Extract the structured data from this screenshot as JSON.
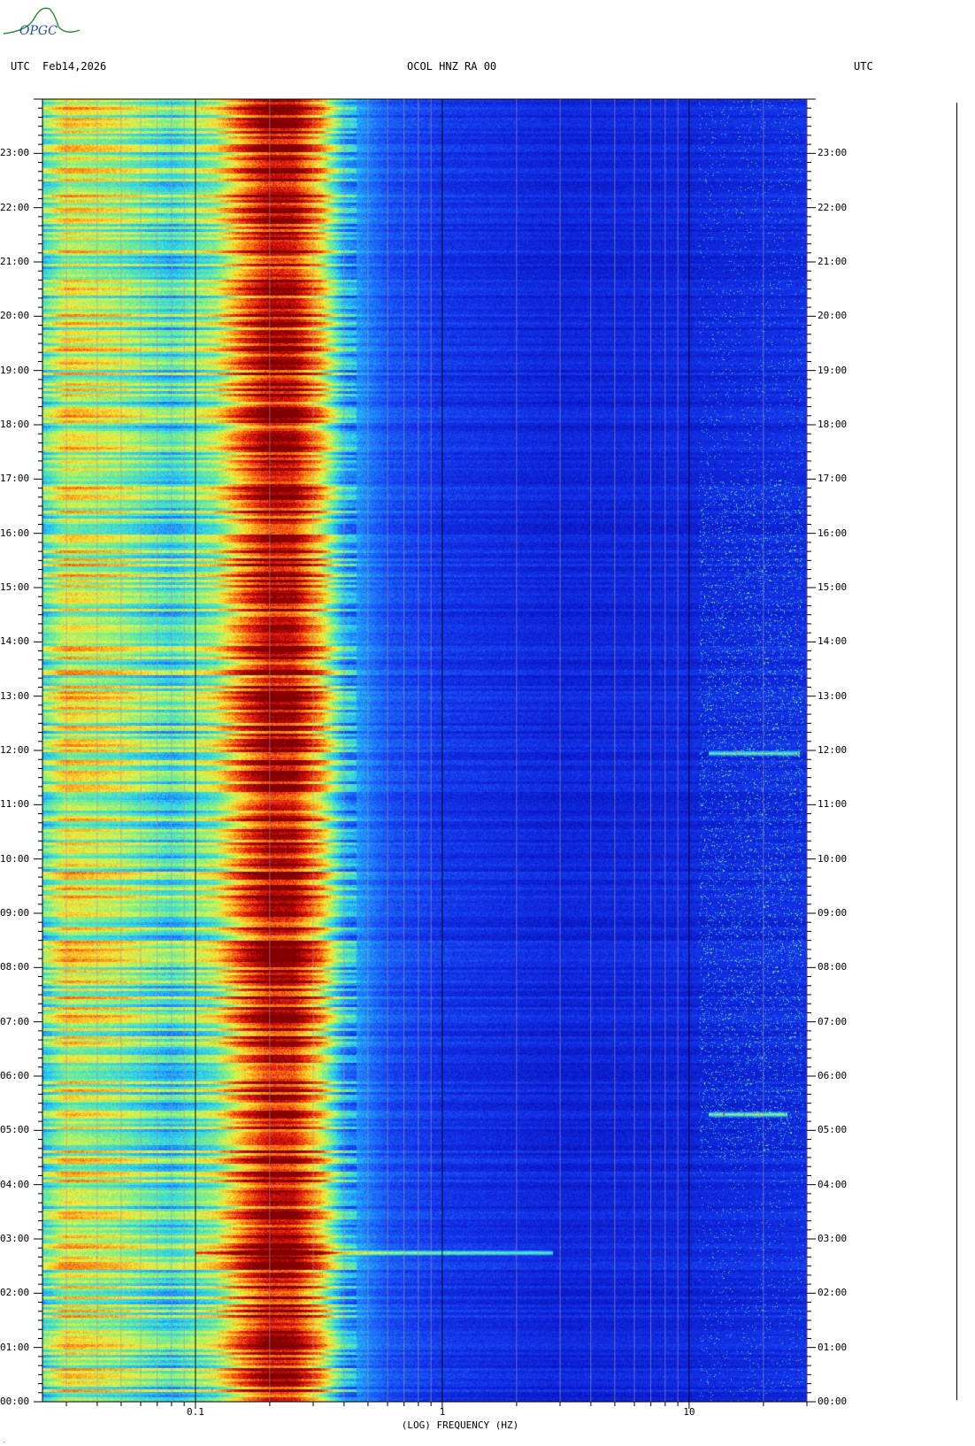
{
  "logo_text": "OPGC",
  "header": {
    "left_tz": "UTC",
    "date": "Feb14,2026",
    "station": "OCOL HNZ RA 00",
    "right_tz": "UTC"
  },
  "colors": {
    "deep_blue": "#0a22d0",
    "blue": "#1e4cf0",
    "cyan": "#27d6f0",
    "green": "#80f080",
    "yellow": "#f5f03a",
    "orange": "#ff7a10",
    "red": "#e01010",
    "dark_red": "#8a0000"
  },
  "chart_data": {
    "type": "heatmap",
    "title": "OCOL HNZ RA 00",
    "xlabel": "(LOG) FREQUENCY (HZ)",
    "ylabel": "UTC",
    "x_scale": "log",
    "xlim": [
      0.024,
      30
    ],
    "ylim_hours": [
      0,
      24
    ],
    "x_ticks": [
      {
        "value": 0.1,
        "label": "0.1"
      },
      {
        "value": 1,
        "label": "1"
      },
      {
        "value": 10,
        "label": "10"
      }
    ],
    "y_ticks_left": [
      "00:00",
      "01:00",
      "02:00",
      "03:00",
      "04:00",
      "05:00",
      "06:00",
      "07:00",
      "08:00",
      "09:00",
      "10:00",
      "11:00",
      "12:00",
      "13:00",
      "14:00",
      "15:00",
      "16:00",
      "17:00",
      "18:00",
      "19:00",
      "20:00",
      "21:00",
      "22:00",
      "23:00"
    ],
    "y_ticks_right": [
      "00:00",
      "01:00",
      "02:00",
      "03:00",
      "04:00",
      "05:00",
      "06:00",
      "07:00",
      "08:00",
      "09:00",
      "10:00",
      "11:00",
      "12:00",
      "13:00",
      "14:00",
      "15:00",
      "16:00",
      "17:00",
      "18:00",
      "19:00",
      "20:00",
      "21:00",
      "22:00",
      "23:00"
    ],
    "band_profile": [
      {
        "f": 0.024,
        "level": 0.45
      },
      {
        "f": 0.03,
        "level": 0.62
      },
      {
        "f": 0.05,
        "level": 0.55
      },
      {
        "f": 0.08,
        "level": 0.42
      },
      {
        "f": 0.12,
        "level": 0.55
      },
      {
        "f": 0.16,
        "level": 0.8
      },
      {
        "f": 0.2,
        "level": 0.95
      },
      {
        "f": 0.25,
        "level": 0.93
      },
      {
        "f": 0.32,
        "level": 0.7
      },
      {
        "f": 0.4,
        "level": 0.35
      },
      {
        "f": 0.6,
        "level": 0.18
      },
      {
        "f": 1,
        "level": 0.12
      },
      {
        "f": 3,
        "level": 0.07
      },
      {
        "f": 10,
        "level": 0.08
      },
      {
        "f": 30,
        "level": 0.1
      }
    ],
    "events": [
      {
        "time_h": 2.75,
        "fmin": 0.1,
        "fmax": 2.8,
        "note": "transient"
      },
      {
        "time_h": 5.3,
        "fmin": 12,
        "fmax": 25,
        "note": "hf burst"
      },
      {
        "time_h": 11.95,
        "fmin": 12,
        "fmax": 28,
        "note": "hf burst"
      }
    ]
  }
}
